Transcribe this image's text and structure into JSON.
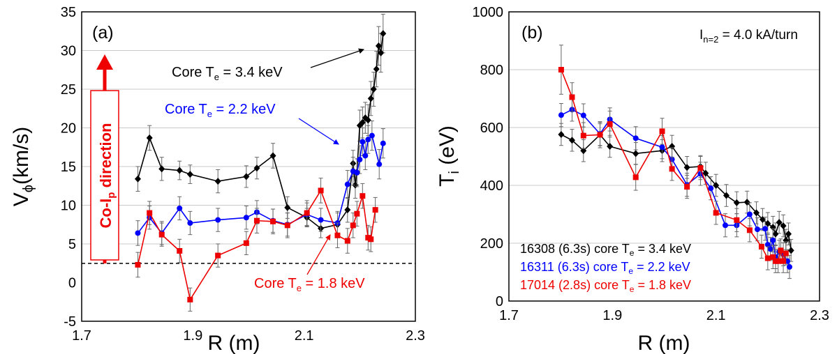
{
  "chart_data": [
    {
      "type": "line",
      "panel_label": "(a)",
      "xlabel": "R (m)",
      "ylabel": "V",
      "ylabel_sub": "ϕ",
      "ylabel_rest": "(km/s)",
      "xlim": [
        1.7,
        2.3
      ],
      "ylim": [
        -5,
        35
      ],
      "xticks": [
        "1.7",
        "1.9",
        "2.1",
        "2.3"
      ],
      "yticks": [
        "-5",
        "0",
        "5",
        "10",
        "15",
        "20",
        "25",
        "30",
        "35"
      ],
      "grid": "horizontal",
      "zero_line": true,
      "direction_label": {
        "pre": "Co-I",
        "sub": "p",
        "post": " direction"
      },
      "annotations": [
        {
          "text": "Core T",
          "sub": "e",
          "rest": " = 3.4 keV",
          "color": "#000000"
        },
        {
          "text": "Core T",
          "sub": "e",
          "rest": " = 2.2 keV",
          "color": "#0000ff"
        },
        {
          "text": "Core T",
          "sub": "e",
          "rest": " = 1.8 keV",
          "color": "#ee0000"
        }
      ],
      "series": [
        {
          "color": "#000000",
          "marker": "diamond",
          "x": [
            1.801,
            1.822,
            1.844,
            1.876,
            1.895,
            1.945,
            1.996,
            2.015,
            2.044,
            2.07,
            2.105,
            2.13,
            2.16,
            2.178,
            2.188,
            2.192,
            2.195,
            2.2,
            2.205,
            2.21,
            2.215,
            2.22,
            2.225,
            2.23,
            2.234,
            2.238,
            2.242
          ],
          "y": [
            13.4,
            18.7,
            14.7,
            14.5,
            14.0,
            13.1,
            13.7,
            14.8,
            16.4,
            9.7,
            8.4,
            7.0,
            7.5,
            9.4,
            15.4,
            12.6,
            14.3,
            20.3,
            20.7,
            21.3,
            21.0,
            23.8,
            25.0,
            27.6,
            30.6,
            29.7,
            32.2
          ],
          "err": [
            1.6,
            1.6,
            1.5,
            1.2,
            1.2,
            1.5,
            1.4,
            1.4,
            1.6,
            1.4,
            1.2,
            1.2,
            1.5,
            1.6,
            1.7,
            1.7,
            1.7,
            2.0,
            2.0,
            2.0,
            2.0,
            2.2,
            2.2,
            2.3,
            2.5,
            2.5,
            2.5
          ]
        },
        {
          "color": "#0000ff",
          "marker": "circle",
          "x": [
            1.801,
            1.822,
            1.844,
            1.876,
            1.895,
            1.945,
            1.996,
            2.015,
            2.044,
            2.07,
            2.105,
            2.13,
            2.16,
            2.178,
            2.188,
            2.195,
            2.2,
            2.205,
            2.21,
            2.215,
            2.222,
            2.235,
            2.242
          ],
          "y": [
            6.4,
            8.4,
            6.4,
            9.6,
            7.7,
            8.1,
            8.4,
            9.1,
            8.0,
            7.5,
            8.8,
            8.1,
            7.7,
            12.7,
            14.4,
            14.2,
            15.9,
            18.2,
            16.4,
            18.5,
            19.0,
            15.3,
            18.0
          ],
          "err": [
            1.6,
            1.5,
            1.5,
            1.5,
            1.5,
            1.5,
            1.5,
            1.5,
            1.5,
            1.5,
            1.5,
            1.5,
            1.5,
            1.8,
            1.8,
            1.8,
            1.8,
            1.8,
            1.8,
            1.8,
            1.9,
            1.9,
            1.9
          ]
        },
        {
          "color": "#ee0000",
          "marker": "square",
          "x": [
            1.801,
            1.822,
            1.844,
            1.876,
            1.895,
            1.945,
            1.996,
            2.015,
            2.044,
            2.07,
            2.105,
            2.13,
            2.16,
            2.178,
            2.188,
            2.195,
            2.205,
            2.215,
            2.22,
            2.228
          ],
          "y": [
            2.3,
            9.0,
            6.2,
            4.1,
            -2.2,
            3.5,
            5.1,
            8.0,
            7.9,
            7.4,
            9.0,
            11.9,
            6.1,
            5.4,
            7.4,
            8.9,
            11.2,
            5.8,
            5.6,
            9.4
          ],
          "err": [
            1.6,
            1.5,
            1.5,
            1.5,
            1.5,
            1.5,
            1.5,
            1.6,
            1.6,
            1.6,
            1.6,
            1.6,
            1.6,
            1.6,
            1.6,
            1.6,
            1.6,
            1.6,
            1.6,
            1.6
          ]
        }
      ]
    },
    {
      "type": "line",
      "panel_label": "(b)",
      "xlabel": "R (m)",
      "ylabel": "T",
      "ylabel_sub": "i",
      "ylabel_rest": " (eV)",
      "xlim": [
        1.7,
        2.3
      ],
      "ylim": [
        0,
        1000
      ],
      "xticks": [
        "1.7",
        "1.9",
        "2.1",
        "2.3"
      ],
      "yticks": [
        "0",
        "200",
        "400",
        "600",
        "800",
        "1000"
      ],
      "grid": "horizontal",
      "current_label": {
        "pre": "I",
        "sub": "n=2",
        "post": " = 4.0 kA/turn"
      },
      "legend_position": "bottom-left",
      "series": [
        {
          "name_pre": "16308 (6.3s) core T",
          "name_sub": "e",
          "name_post": " = 3.4 keV",
          "color": "#000000",
          "marker": "diamond",
          "x": [
            1.801,
            1.822,
            1.844,
            1.876,
            1.895,
            1.945,
            1.996,
            2.015,
            2.044,
            2.07,
            2.08,
            2.1,
            2.12,
            2.14,
            2.16,
            2.178,
            2.19,
            2.2,
            2.21,
            2.215,
            2.222,
            2.23,
            2.235,
            2.24,
            2.245
          ],
          "y": [
            576,
            556,
            520,
            575,
            535,
            510,
            520,
            535,
            462,
            465,
            442,
            400,
            365,
            340,
            342,
            305,
            282,
            268,
            255,
            232,
            272,
            260,
            210,
            232,
            175
          ],
          "err": [
            38,
            38,
            38,
            38,
            38,
            38,
            38,
            38,
            38,
            38,
            38,
            38,
            38,
            38,
            38,
            38,
            38,
            38,
            38,
            38,
            38,
            38,
            38,
            38,
            38
          ]
        },
        {
          "name_pre": "16311 (6.3s) core T",
          "name_sub": "e",
          "name_post": " = 2.2 keV",
          "color": "#0000ff",
          "marker": "circle",
          "x": [
            1.801,
            1.822,
            1.844,
            1.876,
            1.895,
            1.945,
            1.996,
            2.015,
            2.044,
            2.07,
            2.09,
            2.118,
            2.14,
            2.165,
            2.18,
            2.195,
            2.2,
            2.205,
            2.21,
            2.215,
            2.222,
            2.23,
            2.238,
            2.242
          ],
          "y": [
            643,
            662,
            642,
            578,
            628,
            563,
            532,
            490,
            402,
            440,
            390,
            262,
            262,
            300,
            248,
            250,
            195,
            180,
            210,
            152,
            170,
            162,
            138,
            118
          ],
          "err": [
            40,
            40,
            40,
            40,
            40,
            40,
            40,
            40,
            40,
            40,
            40,
            40,
            40,
            40,
            40,
            40,
            40,
            40,
            40,
            40,
            40,
            40,
            40,
            40
          ]
        },
        {
          "name_pre": "17014 (2.8s) core T",
          "name_sub": "e",
          "name_post": " = 1.8 keV",
          "color": "#ee0000",
          "marker": "square",
          "x": [
            1.801,
            1.822,
            1.844,
            1.876,
            1.895,
            1.945,
            1.996,
            2.015,
            2.044,
            2.07,
            2.1,
            2.14,
            2.165,
            2.188,
            2.2,
            2.21,
            2.215,
            2.22,
            2.225,
            2.23,
            2.235
          ],
          "y": [
            800,
            705,
            572,
            575,
            612,
            428,
            587,
            457,
            395,
            460,
            305,
            280,
            245,
            188,
            148,
            152,
            138,
            138,
            175,
            138,
            165
          ],
          "err": [
            85,
            50,
            45,
            45,
            45,
            45,
            45,
            40,
            40,
            40,
            40,
            40,
            40,
            40,
            40,
            40,
            40,
            40,
            40,
            40,
            40
          ]
        }
      ]
    }
  ]
}
